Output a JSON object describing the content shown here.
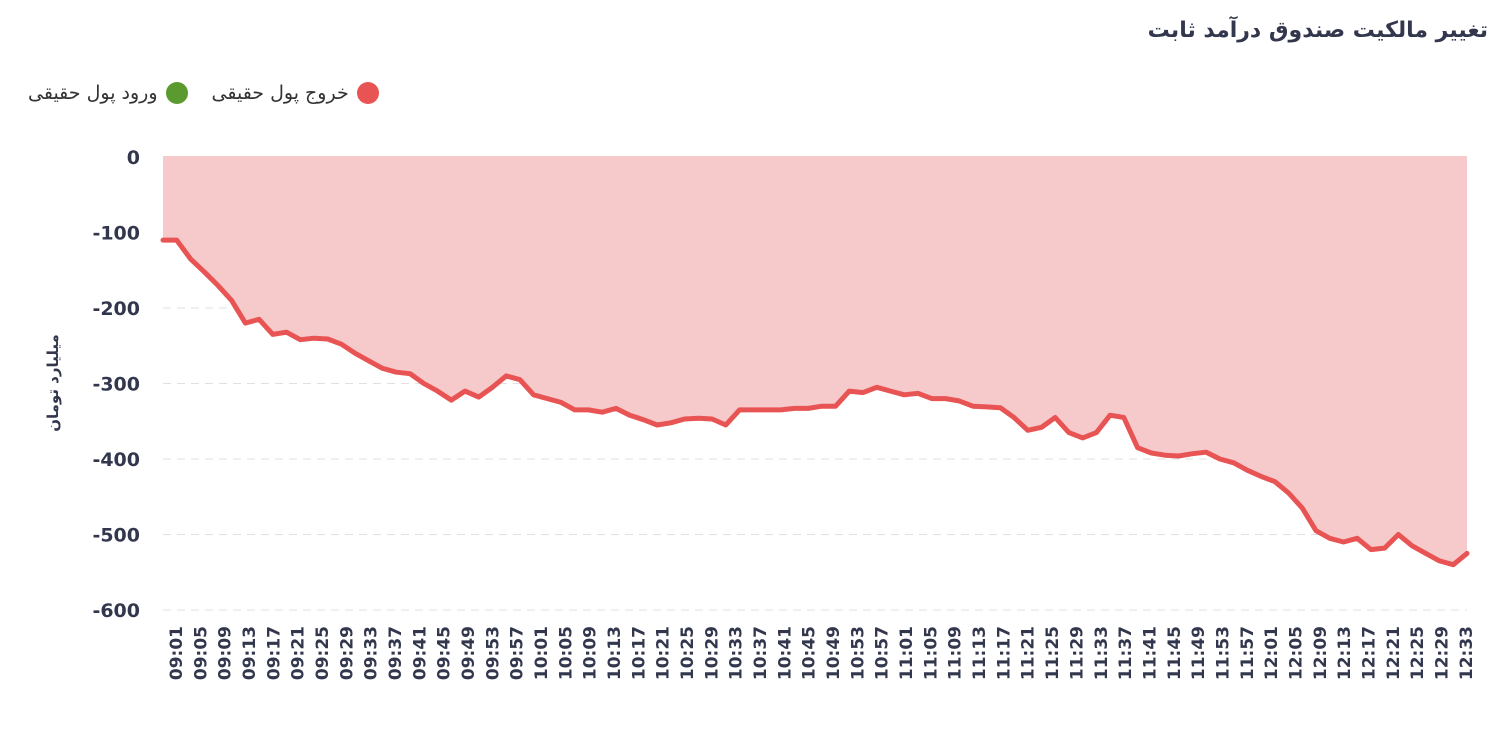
{
  "chart_data": {
    "type": "area",
    "title": "تغییر مالکیت صندوق درآمد ثابت",
    "ylabel": "میلیارد تومان",
    "ylim": [
      -600,
      0
    ],
    "yticks": [
      0,
      -100,
      -200,
      -300,
      -400,
      -500,
      -600
    ],
    "xtick_labels": [
      "09:01",
      "09:05",
      "09:09",
      "09:13",
      "09:17",
      "09:21",
      "09:25",
      "09:29",
      "09:33",
      "09:37",
      "09:41",
      "09:45",
      "09:49",
      "09:53",
      "09:57",
      "10:01",
      "10:05",
      "10:09",
      "10:13",
      "10:17",
      "10:21",
      "10:25",
      "10:29",
      "10:33",
      "10:37",
      "10:41",
      "10:45",
      "10:49",
      "10:53",
      "10:57",
      "11:01",
      "11:05",
      "11:09",
      "11:13",
      "11:17",
      "11:21",
      "11:25",
      "11:29",
      "11:33",
      "11:37",
      "11:41",
      "11:45",
      "11:49",
      "11:53",
      "11:57",
      "12:01",
      "12:05",
      "12:09",
      "12:13",
      "12:17",
      "12:21",
      "12:25",
      "12:29",
      "12:33"
    ],
    "legend": [
      {
        "label": "خروج پول حقیقی",
        "color": "#e85454"
      },
      {
        "label": "ورود پول حقیقی",
        "color": "#5a9a2e"
      }
    ],
    "series": [
      {
        "name": "خروج پول حقیقی",
        "color": "#e85454",
        "fill": "#f6c9ca",
        "values": [
          -110,
          -110,
          -135,
          -152,
          -170,
          -190,
          -220,
          -215,
          -235,
          -232,
          -242,
          -240,
          -241,
          -248,
          -260,
          -270,
          -280,
          -285,
          -287,
          -300,
          -310,
          -322,
          -310,
          -318,
          -305,
          -290,
          -295,
          -315,
          -320,
          -325,
          -335,
          -335,
          -338,
          -333,
          -342,
          -348,
          -355,
          -352,
          -347,
          -346,
          -347,
          -355,
          -335,
          -335,
          -335,
          -335,
          -333,
          -333,
          -330,
          -330,
          -310,
          -312,
          -305,
          -310,
          -315,
          -313,
          -320,
          -320,
          -323,
          -330,
          -331,
          -332,
          -345,
          -362,
          -358,
          -345,
          -365,
          -372,
          -365,
          -342,
          -345,
          -385,
          -392,
          -395,
          -396,
          -393,
          -391,
          -400,
          -405,
          -415,
          -423,
          -430,
          -445,
          -465,
          -495,
          -505,
          -510,
          -505,
          -520,
          -518,
          -500,
          -515,
          -525,
          -535,
          -540,
          -525
        ]
      }
    ]
  }
}
